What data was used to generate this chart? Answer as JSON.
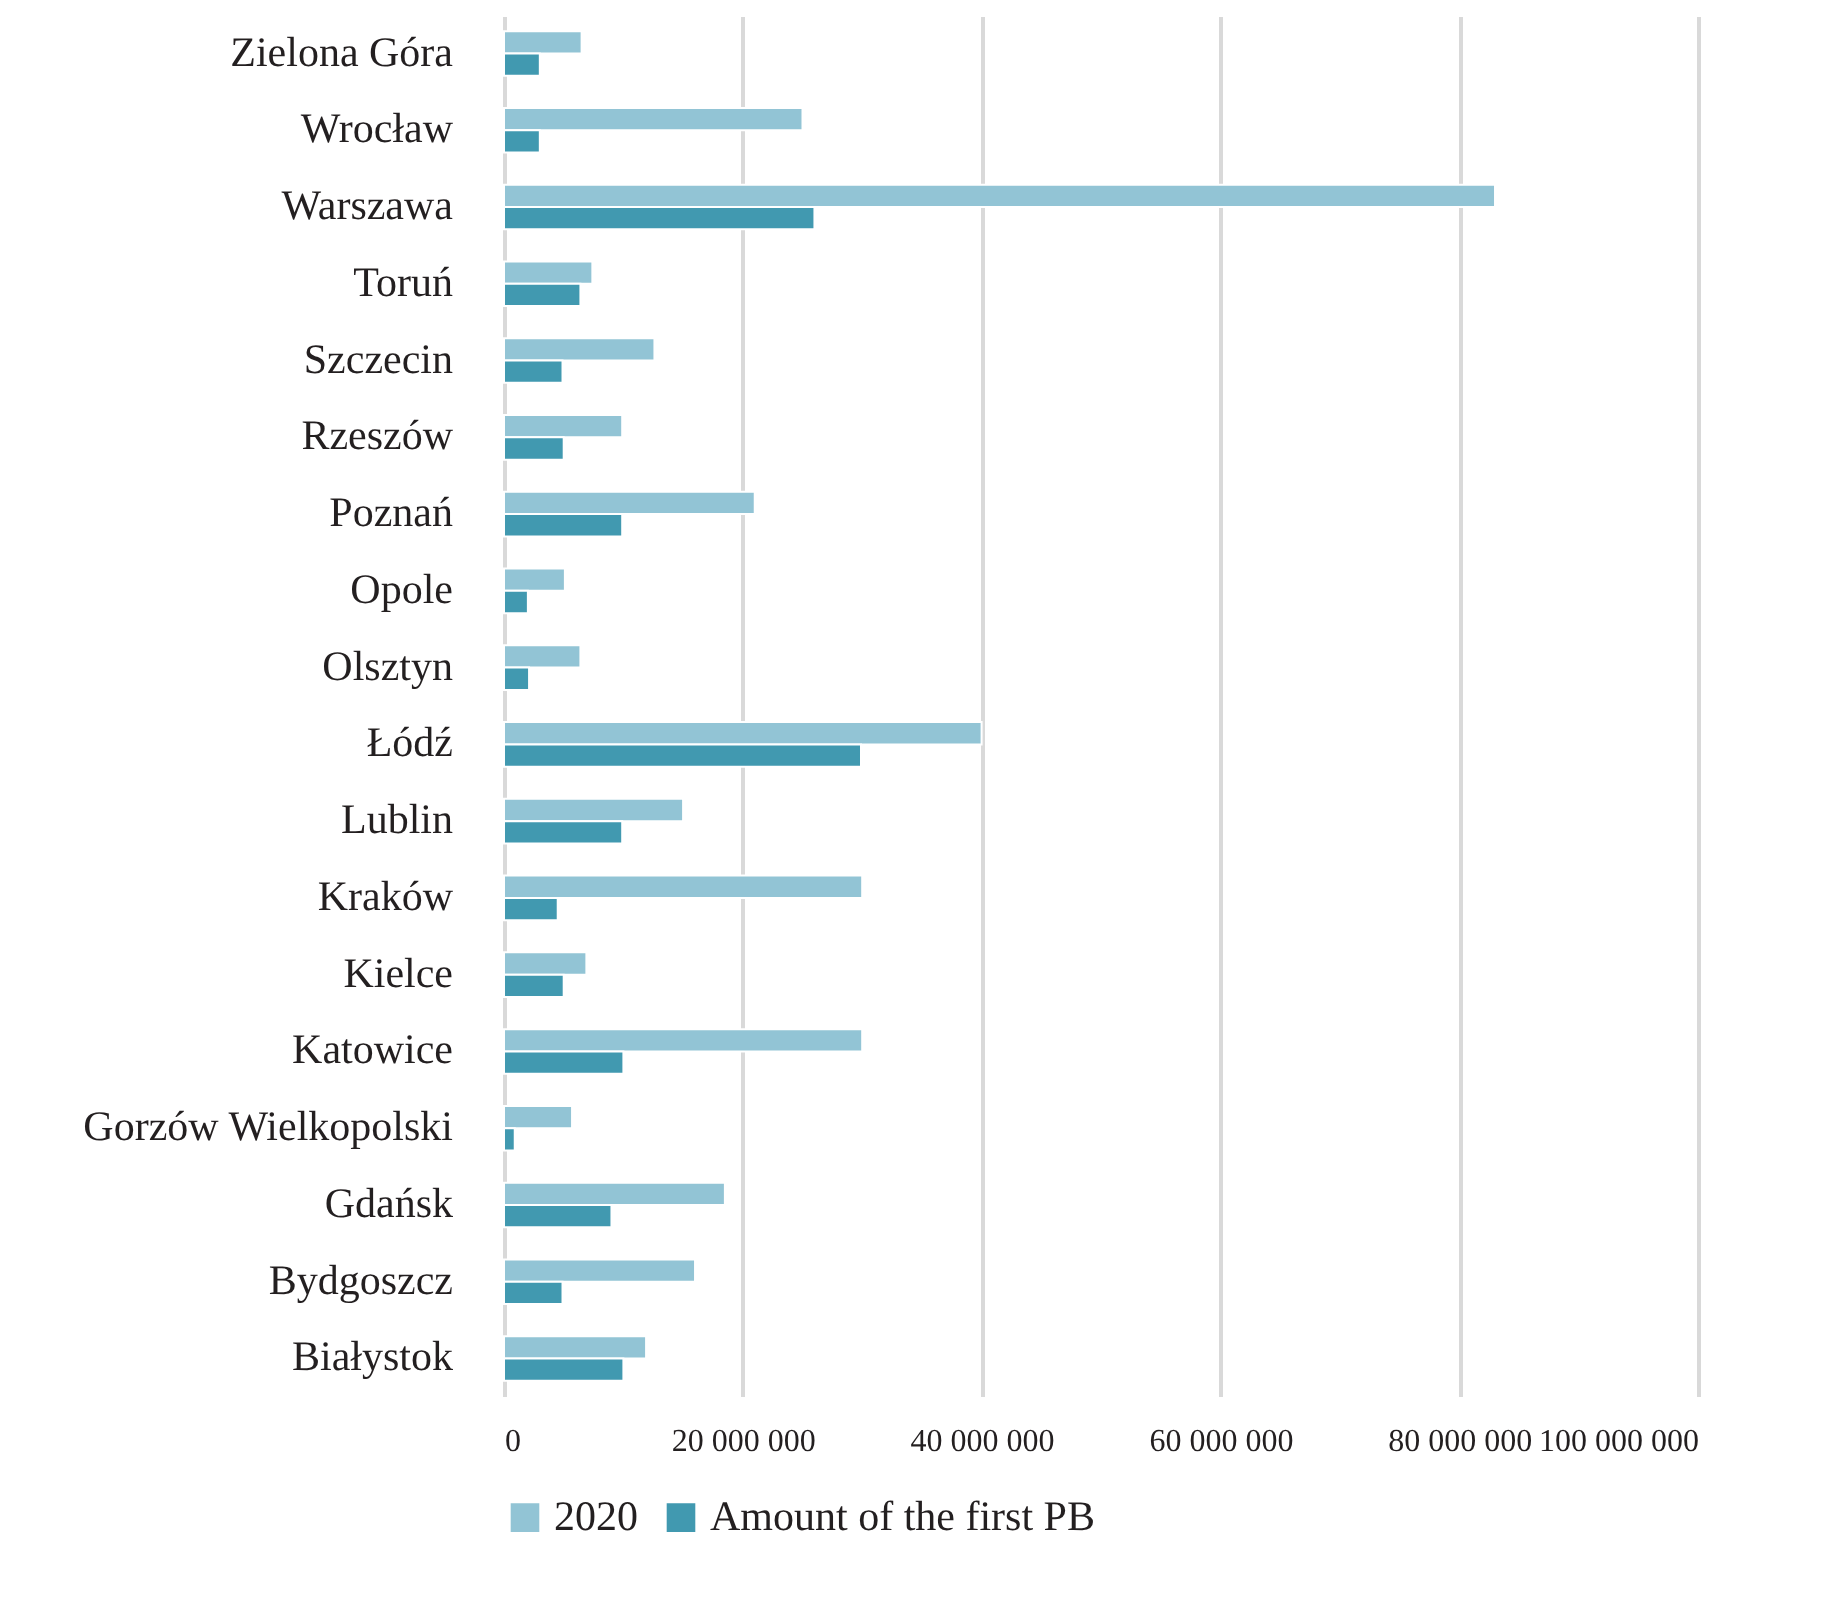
{
  "chart_data": {
    "type": "bar",
    "orientation": "horizontal",
    "categories": [
      "Zielona Góra",
      "Wrocław",
      "Warszawa",
      "Toruń",
      "Szczecin",
      "Rzeszów",
      "Poznań",
      "Opole",
      "Olsztyn",
      "Łódź",
      "Lublin",
      "Kraków",
      "Kielce",
      "Katowice",
      "Gorzów Wielkopolski",
      "Gdańsk",
      "Bydgoszcz",
      "Białystok"
    ],
    "series": [
      {
        "name": "2020",
        "color": "#92c4d5",
        "values": [
          6500000,
          25000000,
          83000000,
          7400000,
          12600000,
          9900000,
          21000000,
          5100000,
          6400000,
          40000000,
          15000000,
          30000000,
          6900000,
          30000000,
          5700000,
          18500000,
          16000000,
          11900000
        ]
      },
      {
        "name": "Amount of the first PB",
        "color": "#4199b0",
        "values": [
          3000000,
          3000000,
          26000000,
          6400000,
          4900000,
          5000000,
          9900000,
          2000000,
          2100000,
          29900000,
          9900000,
          4500000,
          5000000,
          10000000,
          900000,
          9000000,
          4900000,
          10000000
        ]
      }
    ],
    "xlim": [
      0,
      100000000
    ],
    "xticks": [
      0,
      {
        "value": 20000000,
        "label": "20 000 000"
      },
      {
        "value": 40000000,
        "label": "40 000 000"
      },
      {
        "value": 60000000,
        "label": "60 000 000"
      },
      {
        "value": 80000000,
        "label": "80 000 000"
      },
      {
        "value": 100000000,
        "label": "100 000 000"
      }
    ],
    "grid": "x",
    "legend": "bottom"
  }
}
